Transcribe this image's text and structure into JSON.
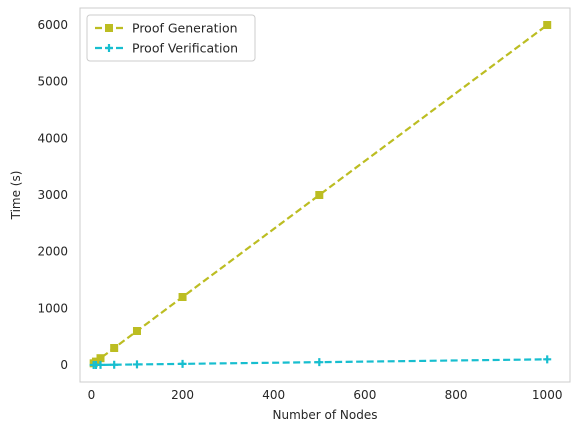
{
  "chart_data": {
    "type": "line",
    "title": "",
    "xlabel": "Number of Nodes",
    "ylabel": "Time (s)",
    "xlim": [
      -25,
      1050
    ],
    "ylim": [
      -300,
      6300
    ],
    "xticks": [
      0,
      200,
      400,
      600,
      800,
      1000
    ],
    "yticks": [
      0,
      1000,
      2000,
      3000,
      4000,
      5000,
      6000
    ],
    "grid": true,
    "legend_position": "top-left",
    "series": [
      {
        "name": "Proof Generation",
        "color": "#bcbd22",
        "marker": "square",
        "linestyle": "dashed",
        "x": [
          5,
          10,
          20,
          50,
          100,
          200,
          500,
          1000
        ],
        "y": [
          30,
          60,
          120,
          300,
          600,
          1200,
          3000,
          6000
        ]
      },
      {
        "name": "Proof Verification",
        "color": "#17becf",
        "marker": "plus",
        "linestyle": "dashed",
        "x": [
          5,
          10,
          20,
          50,
          100,
          200,
          500,
          1000
        ],
        "y": [
          0.5,
          1,
          2,
          5,
          10,
          20,
          50,
          100
        ]
      }
    ]
  }
}
